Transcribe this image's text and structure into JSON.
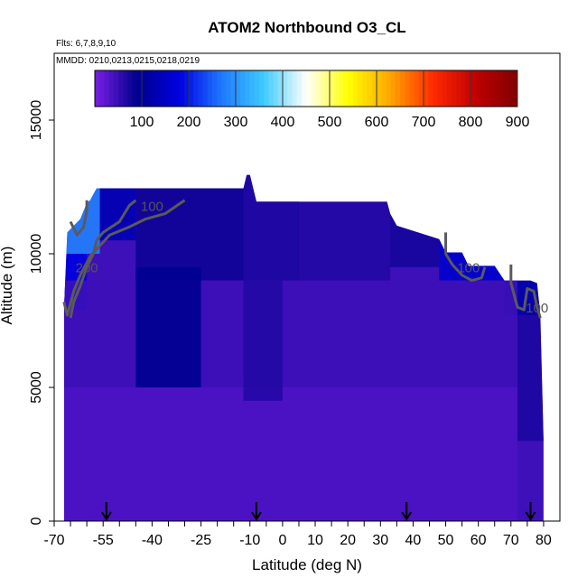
{
  "chart_data": {
    "type": "heatmap",
    "title": "ATOM2 Northbound O3_CL",
    "subtitle_flights": "Flts: 6,7,8,9,10",
    "subtitle_dates": "MMDD: 0210,0213,0215,0218,0219",
    "xlabel": "Latitude (deg N)",
    "ylabel": "Altitude (m)",
    "xlim": [
      -70,
      85
    ],
    "ylim": [
      0,
      17500
    ],
    "xticks": [
      -70,
      -55,
      -40,
      -25,
      -10,
      0,
      10,
      20,
      30,
      40,
      50,
      60,
      70,
      80
    ],
    "xtick_labels": [
      "-70",
      "-55",
      "-40",
      "-25",
      "-10",
      "0",
      "10",
      "20",
      "30",
      "40",
      "50",
      "60",
      "70",
      "80"
    ],
    "x_minor_ticks": [
      -65,
      -60,
      -50,
      -45,
      -35,
      -30,
      -20,
      -15,
      -5,
      5,
      15,
      25,
      35,
      45,
      55,
      65,
      75
    ],
    "yticks": [
      0,
      5000,
      10000,
      15000
    ],
    "ytick_labels": [
      "0",
      "5000",
      "10000",
      "15000"
    ],
    "colorbar": {
      "range": [
        0,
        900
      ],
      "ticks": [
        100,
        200,
        300,
        400,
        500,
        600,
        700,
        800,
        900
      ],
      "tick_labels": [
        "100",
        "200",
        "300",
        "400",
        "500",
        "600",
        "700",
        "800",
        "900"
      ],
      "colors": [
        "#7a1fe6",
        "#00008c",
        "#0000e0",
        "#1e78ff",
        "#3ecbff",
        "#ffffff",
        "#ffff00",
        "#ffa500",
        "#ff2a00",
        "#c00000",
        "#800000"
      ]
    },
    "coverage": {
      "lat": [
        -67,
        -66,
        -62,
        -60,
        -59,
        -57,
        -50,
        -40,
        -30,
        -22,
        -15,
        -12,
        -11,
        -10,
        -9,
        -8,
        5,
        20,
        32,
        33,
        35,
        48,
        50,
        55,
        57,
        65,
        68,
        73,
        76,
        78,
        79,
        80
      ],
      "top": [
        7900,
        10800,
        11300,
        11900,
        12000,
        12450,
        12450,
        12450,
        12450,
        12450,
        12450,
        12450,
        12950,
        12950,
        12450,
        11950,
        11950,
        11950,
        11950,
        11500,
        11050,
        10550,
        10050,
        10050,
        9550,
        9550,
        9000,
        9000,
        9000,
        8900,
        7700,
        3000
      ]
    },
    "ozone_field_description": "values mostly 50-100 ppb; high-altitude southern cap ~200-300 ppb; northern upper layer ~100-300 ppb",
    "cells": [
      {
        "lat_min": -67,
        "lat_max": -56,
        "alt_min": 10000,
        "alt_max": 12450,
        "value": 280
      },
      {
        "lat_min": -67,
        "lat_max": -60,
        "alt_min": 7900,
        "alt_max": 10000,
        "value": 180
      },
      {
        "lat_min": -56,
        "lat_max": -45,
        "alt_min": 10500,
        "alt_max": 12450,
        "value": 130
      },
      {
        "lat_min": -45,
        "lat_max": -12,
        "alt_min": 9000,
        "alt_max": 12450,
        "value": 80
      },
      {
        "lat_min": -12,
        "lat_max": 5,
        "alt_min": 9000,
        "alt_max": 12950,
        "value": 70
      },
      {
        "lat_min": 5,
        "lat_max": 33,
        "alt_min": 9000,
        "alt_max": 11950,
        "value": 65
      },
      {
        "lat_min": 33,
        "lat_max": 48,
        "alt_min": 9500,
        "alt_max": 11500,
        "value": 75
      },
      {
        "lat_min": 48,
        "lat_max": 68,
        "alt_min": 9000,
        "alt_max": 10550,
        "value": 160
      },
      {
        "lat_min": 68,
        "lat_max": 80,
        "alt_min": 7700,
        "alt_max": 9000,
        "value": 120
      },
      {
        "lat_min": 72,
        "lat_max": 80,
        "alt_min": 3000,
        "alt_max": 7700,
        "value": 70
      },
      {
        "lat_min": -67,
        "lat_max": 72,
        "alt_min": 5000,
        "alt_max": 9000,
        "value": 45
      },
      {
        "lat_min": -67,
        "lat_max": 72,
        "alt_min": 0,
        "alt_max": 5000,
        "value": 35
      },
      {
        "lat_min": -45,
        "lat_max": -25,
        "alt_min": 5000,
        "alt_max": 9500,
        "value": 95
      },
      {
        "lat_min": -12,
        "lat_max": 0,
        "alt_min": 4500,
        "alt_max": 9000,
        "value": 65
      }
    ],
    "contours": [
      {
        "label": "200",
        "label_lat": -60,
        "label_alt": 9300,
        "points": [
          [
            -65,
            7600
          ],
          [
            -64,
            8200
          ],
          [
            -62,
            8800
          ],
          [
            -60,
            9500
          ],
          [
            -58,
            10000
          ],
          [
            -57,
            10500
          ],
          [
            -55,
            10800
          ],
          [
            -50,
            11200
          ],
          [
            -47,
            11800
          ],
          [
            -45,
            12000
          ]
        ]
      },
      {
        "label": "100",
        "label_lat": -40,
        "label_alt": 11600,
        "points": [
          [
            -67,
            8200
          ],
          [
            -66,
            7700
          ],
          [
            -64,
            8600
          ],
          [
            -62,
            9200
          ],
          [
            -59,
            9900
          ],
          [
            -56,
            10300
          ],
          [
            -53,
            10700
          ],
          [
            -47,
            11000
          ],
          [
            -42,
            11300
          ],
          [
            -36,
            11500
          ],
          [
            -30,
            12000
          ]
        ]
      },
      {
        "label": "",
        "label_lat": -62,
        "label_alt": 11500,
        "points": [
          [
            -65,
            11200
          ],
          [
            -63,
            10700
          ],
          [
            -61,
            11000
          ],
          [
            -60,
            11600
          ],
          [
            -60,
            12000
          ]
        ]
      },
      {
        "label": "100",
        "label_lat": 57,
        "label_alt": 9300,
        "points": [
          [
            50,
            10800
          ],
          [
            50,
            10000
          ],
          [
            52,
            9600
          ],
          [
            55,
            9200
          ],
          [
            58,
            9000
          ],
          [
            61,
            9100
          ],
          [
            62,
            9500
          ]
        ]
      },
      {
        "label": "100",
        "label_lat": 78,
        "label_alt": 7800,
        "points": [
          [
            70,
            9600
          ],
          [
            70,
            8900
          ],
          [
            72,
            8000
          ],
          [
            74,
            7900
          ],
          [
            75,
            8700
          ],
          [
            77,
            8600
          ],
          [
            78,
            8000
          ],
          [
            79,
            7600
          ]
        ]
      }
    ],
    "flight_markers": [
      -54,
      -8,
      38,
      76
    ]
  }
}
